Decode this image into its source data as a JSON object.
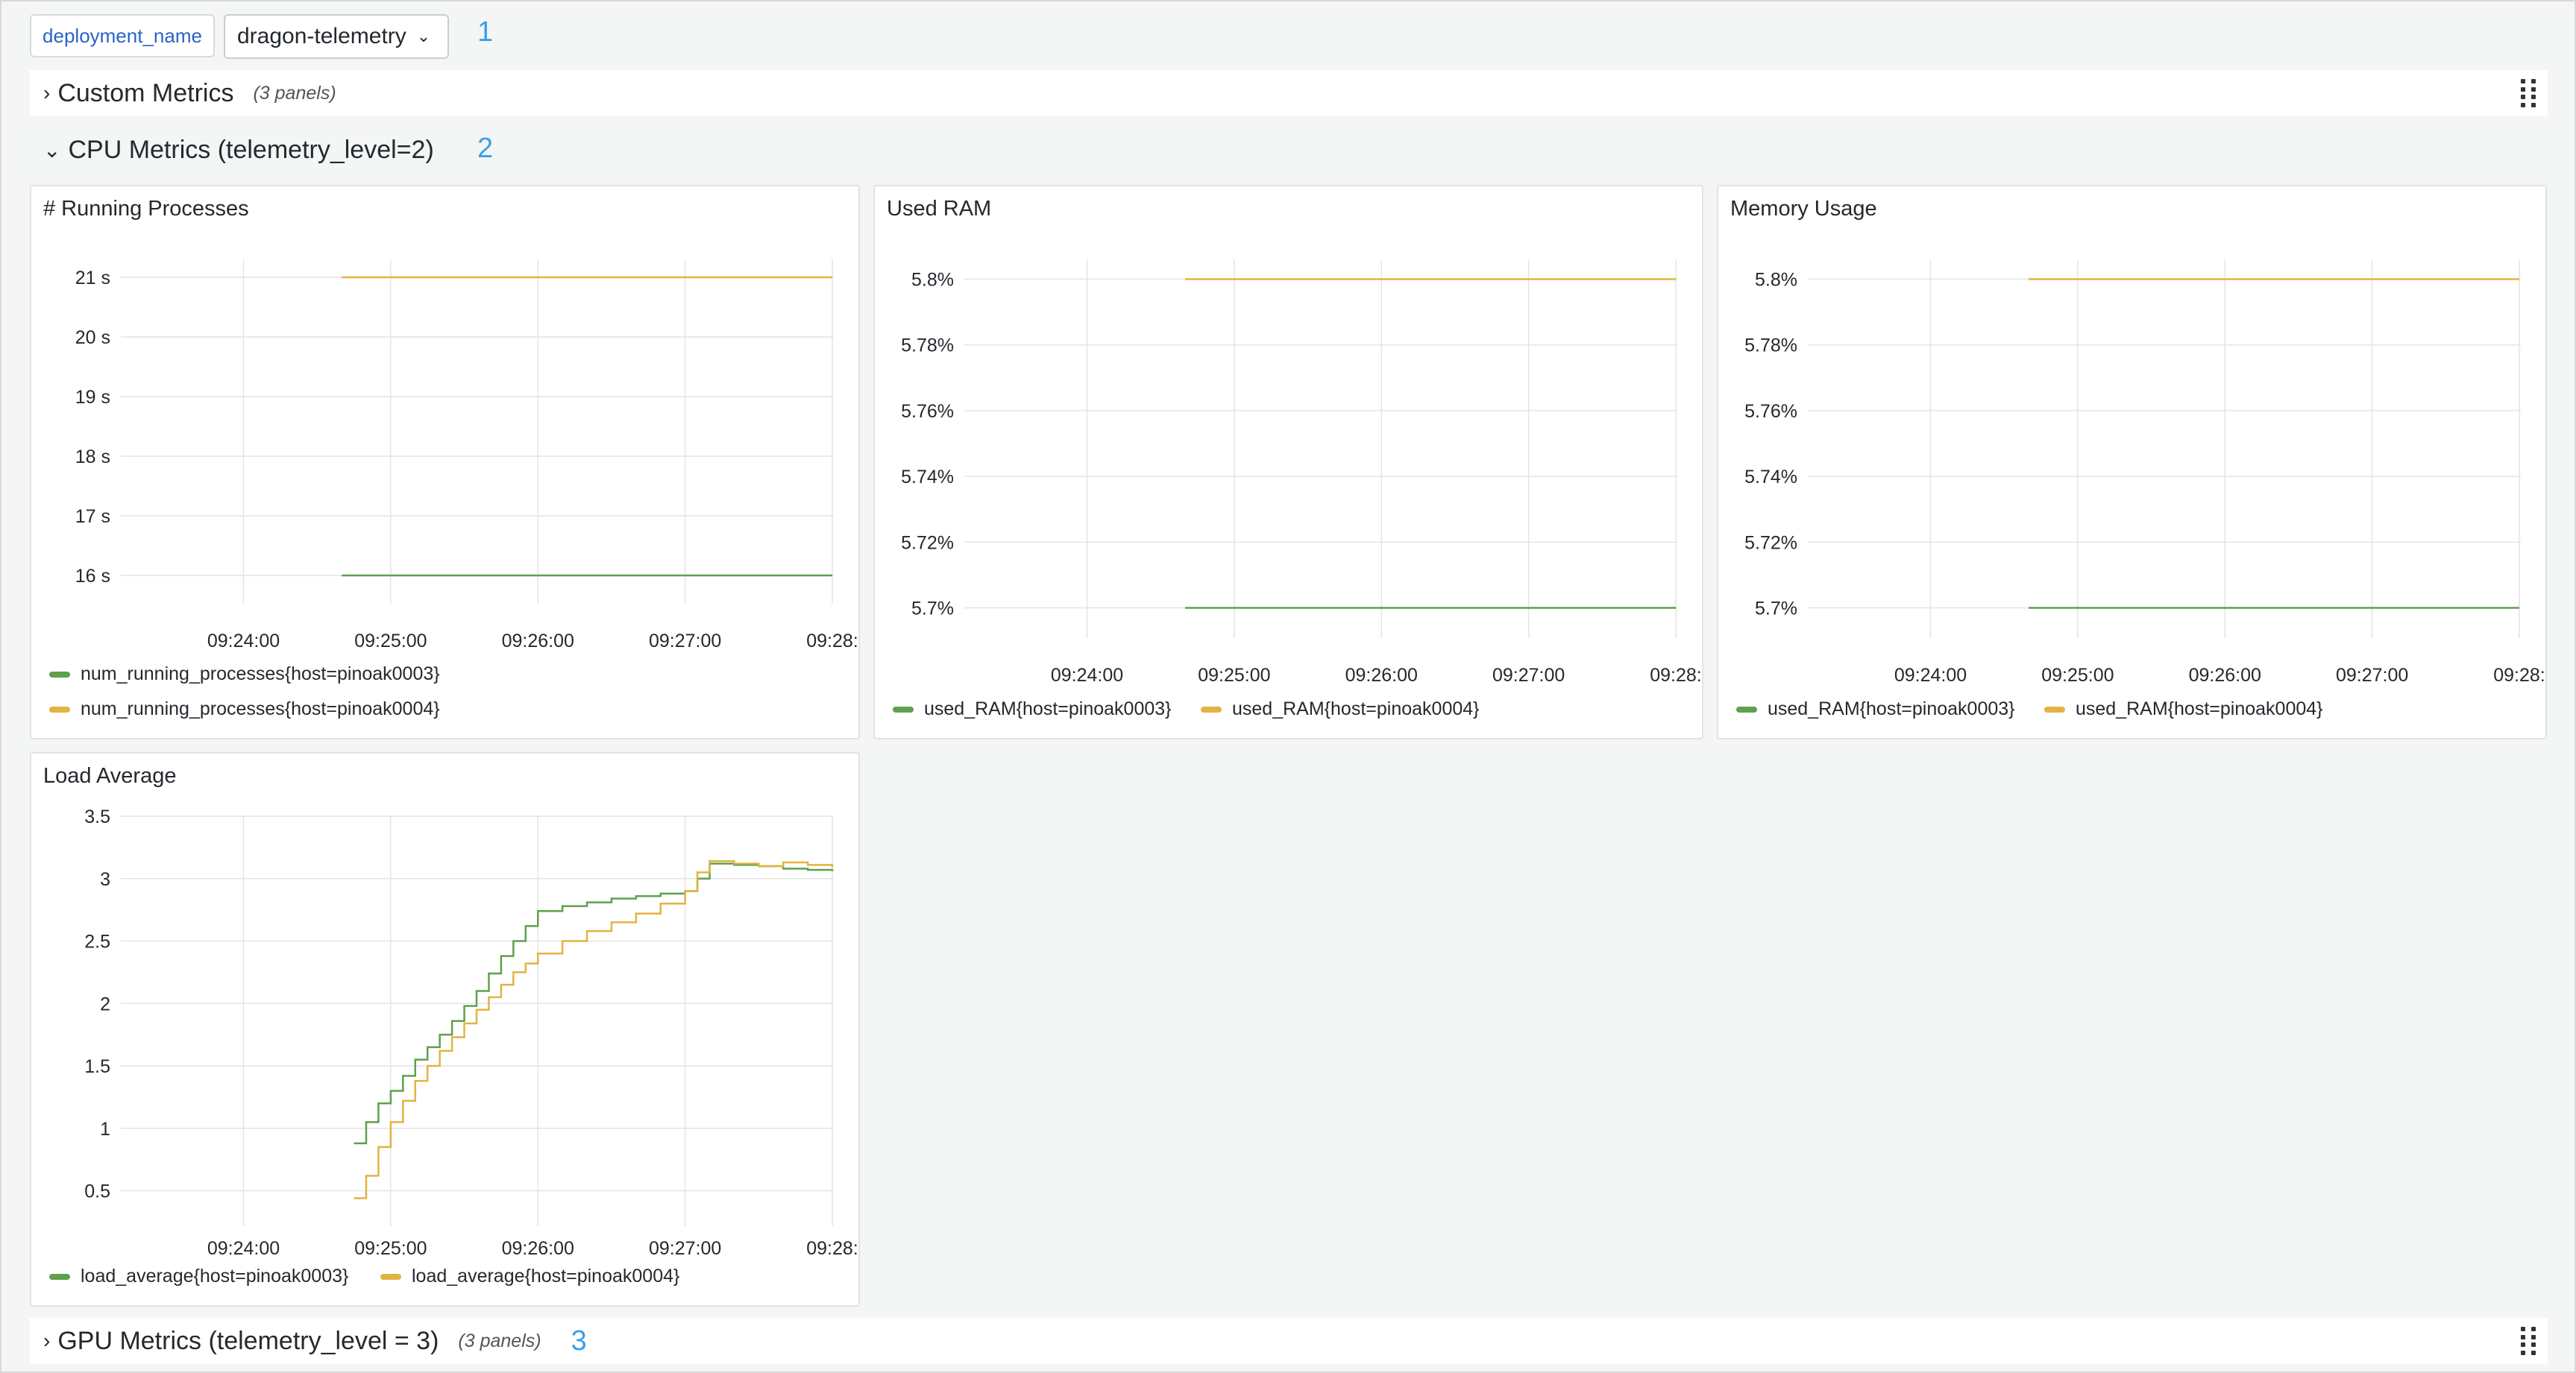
{
  "variable": {
    "label": "deployment_name",
    "value": "dragon-telemetry"
  },
  "markers": [
    "1",
    "2",
    "3"
  ],
  "rows": {
    "custom": {
      "title": "Custom Metrics",
      "count": "(3 panels)"
    },
    "cpu": {
      "title": "CPU Metrics (telemetry_level=2)"
    },
    "gpu": {
      "title": "GPU Metrics (telemetry_level = 3)",
      "count": "(3 panels)"
    }
  },
  "colors": {
    "green": "#5fa04e",
    "yellow": "#e3b341",
    "grid": "#e4e4e4"
  },
  "panels": {
    "procs": {
      "title": "# Running Processes",
      "legend": [
        "num_running_processes{host=pinoak0003}",
        "num_running_processes{host=pinoak0004}"
      ]
    },
    "ram": {
      "title": "Used RAM",
      "legend": [
        "used_RAM{host=pinoak0003}",
        "used_RAM{host=pinoak0004}"
      ]
    },
    "mem": {
      "title": "Memory Usage",
      "legend": [
        "used_RAM{host=pinoak0003}",
        "used_RAM{host=pinoak0004}"
      ]
    },
    "load": {
      "title": "Load Average",
      "legend": [
        "load_average{host=pinoak0003}",
        "load_average{host=pinoak0004}"
      ]
    }
  },
  "chart_data": [
    {
      "type": "line",
      "title": "# Running Processes",
      "x_ticks": [
        "09:24:00",
        "09:25:00",
        "09:26:00",
        "09:27:00",
        "09:28:"
      ],
      "y_ticks": [
        "16 s",
        "17 s",
        "18 s",
        "19 s",
        "20 s",
        "21 s"
      ],
      "ylim": [
        16,
        21
      ],
      "series": [
        {
          "name": "num_running_processes{host=pinoak0003}",
          "color": "green",
          "x": [
            "09:24:40",
            "09:28:00"
          ],
          "y": [
            16,
            16
          ]
        },
        {
          "name": "num_running_processes{host=pinoak0004}",
          "color": "yellow",
          "x": [
            "09:24:40",
            "09:28:00"
          ],
          "y": [
            21,
            21
          ]
        }
      ]
    },
    {
      "type": "line",
      "title": "Used RAM",
      "x_ticks": [
        "09:24:00",
        "09:25:00",
        "09:26:00",
        "09:27:00",
        "09:28:"
      ],
      "y_ticks": [
        "5.7%",
        "5.72%",
        "5.74%",
        "5.76%",
        "5.78%",
        "5.8%"
      ],
      "ylim": [
        5.7,
        5.8
      ],
      "series": [
        {
          "name": "used_RAM{host=pinoak0003}",
          "color": "green",
          "x": [
            "09:24:40",
            "09:28:00"
          ],
          "y": [
            5.7,
            5.7
          ]
        },
        {
          "name": "used_RAM{host=pinoak0004}",
          "color": "yellow",
          "x": [
            "09:24:40",
            "09:28:00"
          ],
          "y": [
            5.8,
            5.8
          ]
        }
      ]
    },
    {
      "type": "line",
      "title": "Memory Usage",
      "x_ticks": [
        "09:24:00",
        "09:25:00",
        "09:26:00",
        "09:27:00",
        "09:28:"
      ],
      "y_ticks": [
        "5.7%",
        "5.72%",
        "5.74%",
        "5.76%",
        "5.78%",
        "5.8%"
      ],
      "ylim": [
        5.7,
        5.8
      ],
      "series": [
        {
          "name": "used_RAM{host=pinoak0003}",
          "color": "green",
          "x": [
            "09:24:40",
            "09:28:00"
          ],
          "y": [
            5.7,
            5.7
          ]
        },
        {
          "name": "used_RAM{host=pinoak0004}",
          "color": "yellow",
          "x": [
            "09:24:40",
            "09:28:00"
          ],
          "y": [
            5.8,
            5.8
          ]
        }
      ]
    },
    {
      "type": "line",
      "title": "Load Average",
      "x_ticks": [
        "09:24:00",
        "09:25:00",
        "09:26:00",
        "09:27:00",
        "09:28:"
      ],
      "y_ticks": [
        "0.5",
        "1",
        "1.5",
        "2",
        "2.5",
        "3",
        "3.5"
      ],
      "ylim": [
        0.3,
        3.5
      ],
      "series": [
        {
          "name": "load_average{host=pinoak0003}",
          "color": "green",
          "x": [
            "09:24:45",
            "09:24:50",
            "09:24:55",
            "09:25:00",
            "09:25:05",
            "09:25:10",
            "09:25:15",
            "09:25:20",
            "09:25:25",
            "09:25:30",
            "09:25:35",
            "09:25:40",
            "09:25:45",
            "09:25:50",
            "09:25:55",
            "09:26:00",
            "09:26:10",
            "09:26:20",
            "09:26:30",
            "09:26:40",
            "09:26:50",
            "09:27:00",
            "09:27:05",
            "09:27:10",
            "09:27:20",
            "09:27:30",
            "09:27:40",
            "09:27:50",
            "09:28:00"
          ],
          "y": [
            0.88,
            1.05,
            1.2,
            1.3,
            1.42,
            1.55,
            1.65,
            1.75,
            1.86,
            1.98,
            2.1,
            2.24,
            2.38,
            2.5,
            2.62,
            2.74,
            2.78,
            2.81,
            2.84,
            2.86,
            2.88,
            2.9,
            3.0,
            3.12,
            3.11,
            3.1,
            3.08,
            3.07,
            3.06
          ]
        },
        {
          "name": "load_average{host=pinoak0004}",
          "color": "yellow",
          "x": [
            "09:24:45",
            "09:24:50",
            "09:24:55",
            "09:25:00",
            "09:25:05",
            "09:25:10",
            "09:25:15",
            "09:25:20",
            "09:25:25",
            "09:25:30",
            "09:25:35",
            "09:25:40",
            "09:25:45",
            "09:25:50",
            "09:25:55",
            "09:26:00",
            "09:26:10",
            "09:26:20",
            "09:26:30",
            "09:26:40",
            "09:26:50",
            "09:27:00",
            "09:27:05",
            "09:27:10",
            "09:27:20",
            "09:27:30",
            "09:27:40",
            "09:27:50",
            "09:28:00"
          ],
          "y": [
            0.44,
            0.62,
            0.85,
            1.05,
            1.22,
            1.38,
            1.5,
            1.62,
            1.73,
            1.84,
            1.95,
            2.05,
            2.15,
            2.25,
            2.32,
            2.4,
            2.5,
            2.58,
            2.65,
            2.72,
            2.8,
            2.9,
            3.05,
            3.14,
            3.12,
            3.1,
            3.13,
            3.11,
            3.09
          ]
        }
      ]
    }
  ]
}
